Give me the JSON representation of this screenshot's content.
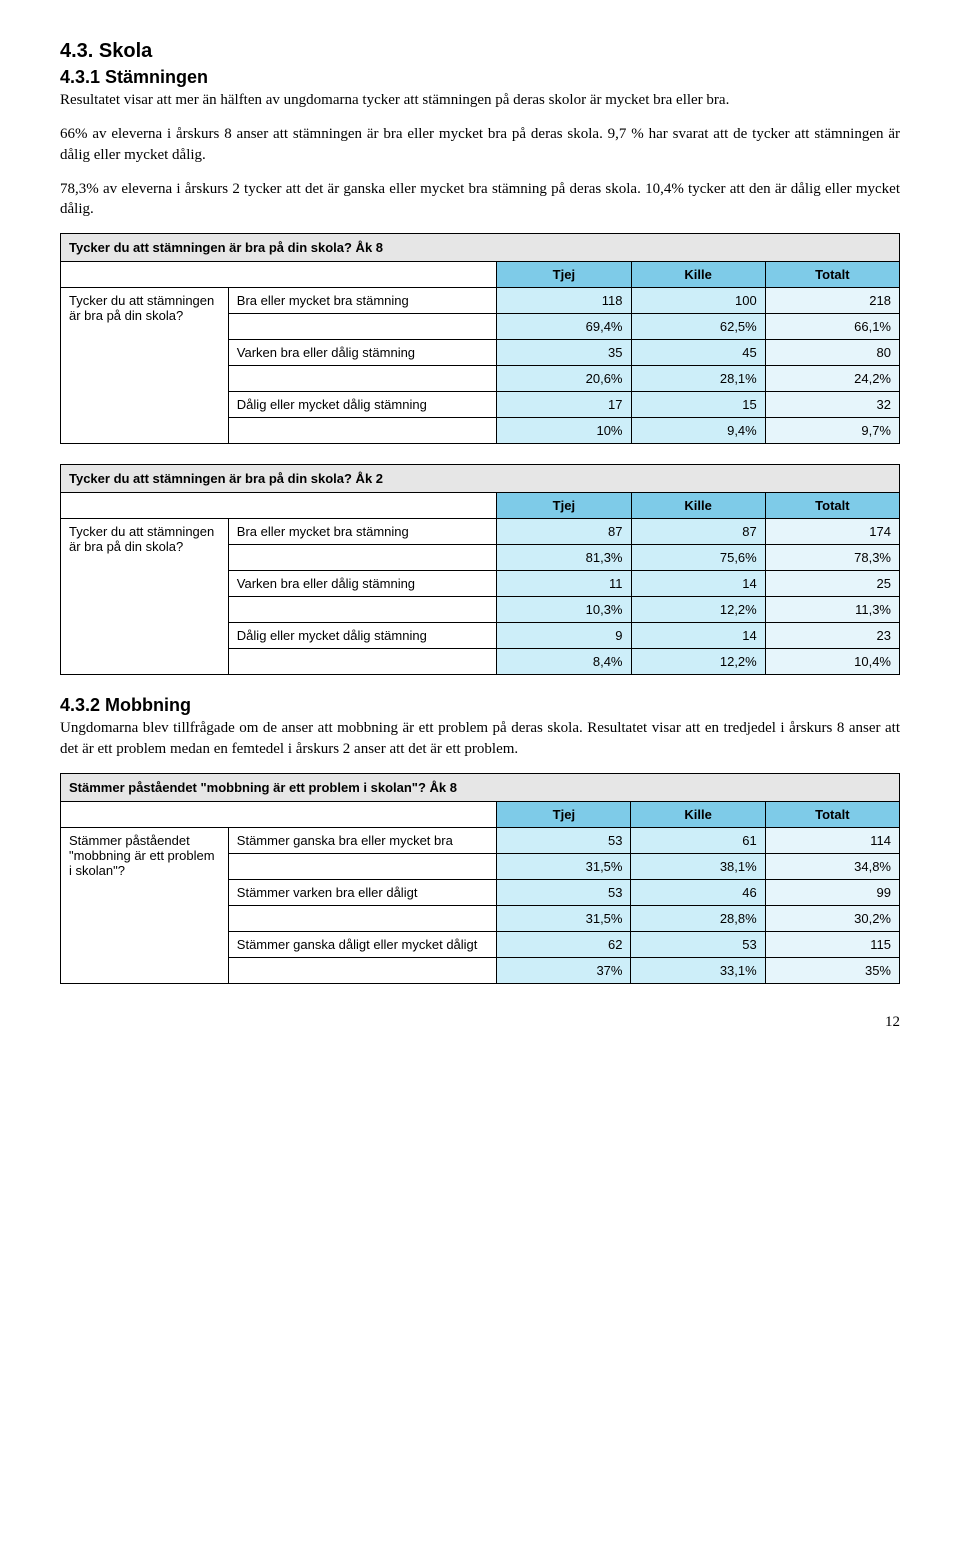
{
  "section": {
    "heading_main": "4.3. Skola",
    "sub1_heading": "4.3.1 Stämningen",
    "sub1_para1": "Resultatet visar att mer än hälften av ungdomarna tycker att stämningen på deras skolor är mycket bra eller bra.",
    "sub1_para2": "66% av eleverna i årskurs 8 anser att stämningen är bra eller mycket bra på deras skola. 9,7 % har svarat att de tycker att stämningen är dålig eller mycket dålig.",
    "sub1_para3": "78,3% av eleverna i årskurs 2 tycker att det är ganska eller mycket bra stämning på deras skola. 10,4% tycker att den är dålig eller mycket dålig.",
    "sub2_heading": "4.3.2 Mobbning",
    "sub2_para1": "Ungdomarna blev tillfrågade om de anser att mobbning är ett problem på deras skola. Resultatet visar att en tredjedel i årskurs 8 anser att det är ett problem medan en femtedel i årskurs 2 anser att det är ett problem."
  },
  "cols": {
    "c1": "Tjej",
    "c2": "Kille",
    "c3": "Totalt"
  },
  "t1": {
    "title": "Tycker du att stämningen är bra på din skola? Åk 8",
    "row_label": "Tycker du att stämningen är bra på din skola?",
    "r1_label": "Bra eller mycket bra stämning",
    "r1_v1": "118",
    "r1_v2": "100",
    "r1_v3": "218",
    "r1_p1": "69,4%",
    "r1_p2": "62,5%",
    "r1_p3": "66,1%",
    "r2_label": "Varken bra eller dålig stämning",
    "r2_v1": "35",
    "r2_v2": "45",
    "r2_v3": "80",
    "r2_p1": "20,6%",
    "r2_p2": "28,1%",
    "r2_p3": "24,2%",
    "r3_label": "Dålig eller mycket dålig stämning",
    "r3_v1": "17",
    "r3_v2": "15",
    "r3_v3": "32",
    "r3_p1": "10%",
    "r3_p2": "9,4%",
    "r3_p3": "9,7%"
  },
  "t2": {
    "title": "Tycker du att stämningen är bra på din skola? Åk 2",
    "row_label": "Tycker du att stämningen är bra på din skola?",
    "r1_label": "Bra eller mycket bra stämning",
    "r1_v1": "87",
    "r1_v2": "87",
    "r1_v3": "174",
    "r1_p1": "81,3%",
    "r1_p2": "75,6%",
    "r1_p3": "78,3%",
    "r2_label": "Varken bra eller dålig stämning",
    "r2_v1": "11",
    "r2_v2": "14",
    "r2_v3": "25",
    "r2_p1": "10,3%",
    "r2_p2": "12,2%",
    "r2_p3": "11,3%",
    "r3_label": "Dålig eller mycket dålig stämning",
    "r3_v1": "9",
    "r3_v2": "14",
    "r3_v3": "23",
    "r3_p1": "8,4%",
    "r3_p2": "12,2%",
    "r3_p3": "10,4%"
  },
  "t3": {
    "title": "Stämmer påståendet \"mobbning är ett problem i skolan\"? Åk 8",
    "row_label": "Stämmer påståendet \"mobbning är ett problem i skolan\"?",
    "r1_label": "Stämmer ganska bra eller mycket bra",
    "r1_v1": "53",
    "r1_v2": "61",
    "r1_v3": "114",
    "r1_p1": "31,5%",
    "r1_p2": "38,1%",
    "r1_p3": "34,8%",
    "r2_label": "Stämmer varken bra eller dåligt",
    "r2_v1": "53",
    "r2_v2": "46",
    "r2_v3": "99",
    "r2_p1": "31,5%",
    "r2_p2": "28,8%",
    "r2_p3": "30,2%",
    "r3_label": "Stämmer ganska dåligt eller mycket dåligt",
    "r3_v1": "62",
    "r3_v2": "53",
    "r3_v3": "115",
    "r3_p1": "37%",
    "r3_p2": "33,1%",
    "r3_p3": "35%"
  },
  "page_num": "12"
}
